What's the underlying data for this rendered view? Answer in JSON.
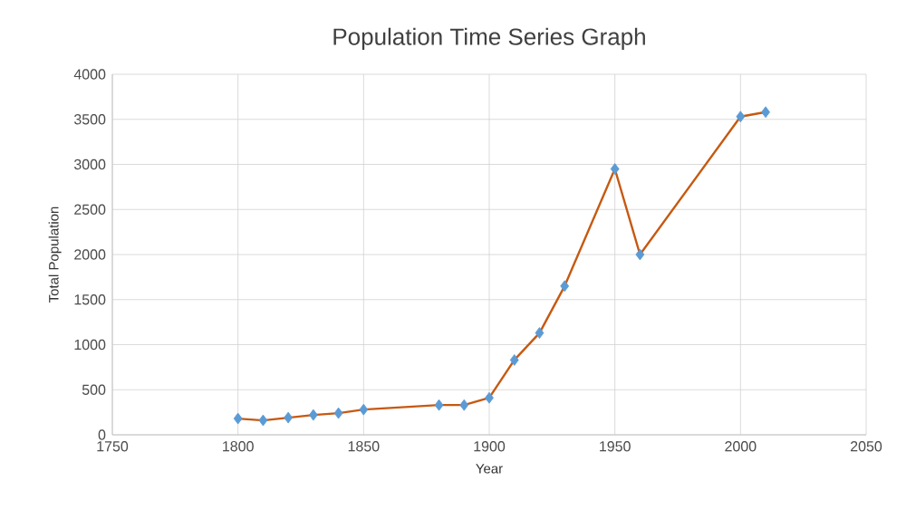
{
  "chart_data": {
    "type": "line",
    "title": "Population Time Series Graph",
    "xlabel": "Year",
    "ylabel": "Total Population",
    "x": [
      1800,
      1810,
      1820,
      1830,
      1840,
      1850,
      1880,
      1890,
      1900,
      1910,
      1920,
      1930,
      1950,
      1960,
      2000,
      2010
    ],
    "series": [
      {
        "color": "#c65911",
        "colors": [
          "#5b9bd5",
          "#5b9bd5",
          "#5b9bd5",
          "#5b9bd5",
          "#5b9bd5",
          "#5b9bd5",
          "#5b9bd5",
          "#5b9bd5",
          "#5b9bd5",
          "#5b9bd5",
          "#5b9bd5",
          "#5b9bd5",
          "#5b9bd5",
          "#5b9bd5",
          "#5b9bd5",
          "#5b9bd5"
        ],
        "values": [
          180,
          160,
          190,
          220,
          240,
          280,
          330,
          330,
          410,
          830,
          1130,
          1650,
          2950,
          2000,
          3530,
          3580
        ]
      }
    ],
    "xlim": [
      1750,
      2050
    ],
    "xticks": [
      1750,
      1800,
      1850,
      1900,
      1950,
      2000,
      2050
    ],
    "ylim": [
      0,
      4000
    ],
    "yticks": [
      0,
      500,
      1000,
      1500,
      2000,
      2500,
      3000,
      3500,
      4000
    ],
    "grid": true,
    "marker": "diamond",
    "line_style": "solid"
  }
}
